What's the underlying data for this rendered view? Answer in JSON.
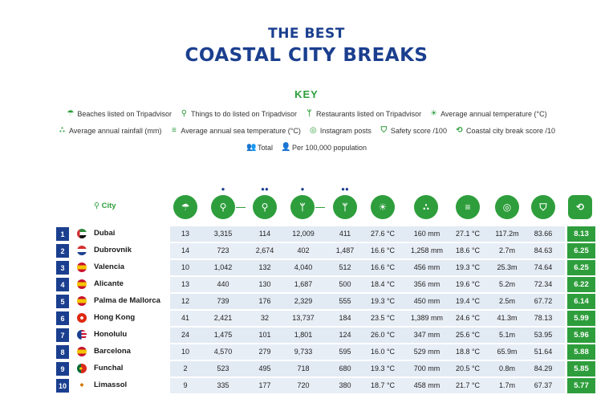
{
  "title": {
    "line1": "THE BEST",
    "line2": "COASTAL CITY BREAKS"
  },
  "key": {
    "heading": "KEY",
    "items": [
      {
        "icon": "beach-umbrella-icon",
        "label": "Beaches listed on Tripadvisor"
      },
      {
        "icon": "bicycle-icon",
        "label": "Things to do listed on Tripadvisor"
      },
      {
        "icon": "fork-knife-icon",
        "label": "Restaurants listed on Tripadvisor"
      },
      {
        "icon": "thermometer-sun-icon",
        "label": "Average annual temperature (°C)"
      },
      {
        "icon": "rain-drops-icon",
        "label": "Average annual rainfall (mm)"
      },
      {
        "icon": "waves-icon",
        "label": "Average annual sea temperature (°C)"
      },
      {
        "icon": "instagram-icon",
        "label": "Instagram posts"
      },
      {
        "icon": "shield-icon",
        "label": "Safety score /100"
      },
      {
        "icon": "refresh-icon",
        "label": "Coastal city break score /10"
      },
      {
        "icon": "group-icon",
        "label": "Total"
      },
      {
        "icon": "person-icon",
        "label": "Per 100,000 population"
      }
    ]
  },
  "table": {
    "city_header": "City",
    "rows": [
      {
        "rank": "1",
        "city": "Dubai",
        "flag": "uae",
        "beaches": "13",
        "things_total": "3,315",
        "things_per": "114",
        "rest_total": "12,009",
        "rest_per": "411",
        "temp": "27.6 °C",
        "rain": "160 mm",
        "sea": "27.1 °C",
        "insta": "117.2m",
        "safety": "83.66",
        "score": "8.13"
      },
      {
        "rank": "2",
        "city": "Dubrovnik",
        "flag": "croatia",
        "beaches": "14",
        "things_total": "723",
        "things_per": "2,674",
        "rest_total": "402",
        "rest_per": "1,487",
        "temp": "16.6 °C",
        "rain": "1,258 mm",
        "sea": "18.6 °C",
        "insta": "2.7m",
        "safety": "84.63",
        "score": "6.25"
      },
      {
        "rank": "3",
        "city": "Valencia",
        "flag": "spain",
        "beaches": "10",
        "things_total": "1,042",
        "things_per": "132",
        "rest_total": "4,040",
        "rest_per": "512",
        "temp": "16.6 °C",
        "rain": "456 mm",
        "sea": "19.3 °C",
        "insta": "25.3m",
        "safety": "74.64",
        "score": "6.25"
      },
      {
        "rank": "4",
        "city": "Alicante",
        "flag": "spain",
        "beaches": "13",
        "things_total": "440",
        "things_per": "130",
        "rest_total": "1,687",
        "rest_per": "500",
        "temp": "18.4 °C",
        "rain": "356 mm",
        "sea": "19.6 °C",
        "insta": "5.2m",
        "safety": "72.34",
        "score": "6.22"
      },
      {
        "rank": "5",
        "city": "Palma de Mallorca",
        "flag": "spain",
        "beaches": "12",
        "things_total": "739",
        "things_per": "176",
        "rest_total": "2,329",
        "rest_per": "555",
        "temp": "19.3 °C",
        "rain": "450 mm",
        "sea": "19.4 °C",
        "insta": "2.5m",
        "safety": "67.72",
        "score": "6.14"
      },
      {
        "rank": "6",
        "city": "Hong Kong",
        "flag": "hongkong",
        "beaches": "41",
        "things_total": "2,421",
        "things_per": "32",
        "rest_total": "13,737",
        "rest_per": "184",
        "temp": "23.5 °C",
        "rain": "1,389 mm",
        "sea": "24.6 °C",
        "insta": "41.3m",
        "safety": "78.13",
        "score": "5.99"
      },
      {
        "rank": "7",
        "city": "Honolulu",
        "flag": "usa",
        "beaches": "24",
        "things_total": "1,475",
        "things_per": "101",
        "rest_total": "1,801",
        "rest_per": "124",
        "temp": "26.0 °C",
        "rain": "347 mm",
        "sea": "25.6 °C",
        "insta": "5.1m",
        "safety": "53.95",
        "score": "5.96"
      },
      {
        "rank": "8",
        "city": "Barcelona",
        "flag": "spain",
        "beaches": "10",
        "things_total": "4,570",
        "things_per": "279",
        "rest_total": "9,733",
        "rest_per": "595",
        "temp": "16.0 °C",
        "rain": "529 mm",
        "sea": "18.8 °C",
        "insta": "65.9m",
        "safety": "51.64",
        "score": "5.88"
      },
      {
        "rank": "9",
        "city": "Funchal",
        "flag": "portugal",
        "beaches": "2",
        "things_total": "523",
        "things_per": "495",
        "rest_total": "718",
        "rest_per": "680",
        "temp": "19.3 °C",
        "rain": "700 mm",
        "sea": "20.5 °C",
        "insta": "0.8m",
        "safety": "84.29",
        "score": "5.85"
      },
      {
        "rank": "10",
        "city": "Limassol",
        "flag": "cyprus",
        "beaches": "9",
        "things_total": "335",
        "things_per": "177",
        "rest_total": "720",
        "rest_per": "380",
        "temp": "18.7 °C",
        "rain": "458 mm",
        "sea": "21.7 °C",
        "insta": "1.7m",
        "safety": "67.37",
        "score": "5.77"
      }
    ]
  },
  "colors": {
    "green": "#2e9e3c",
    "blue": "#1b3f8f",
    "band": "#e8eef6"
  }
}
